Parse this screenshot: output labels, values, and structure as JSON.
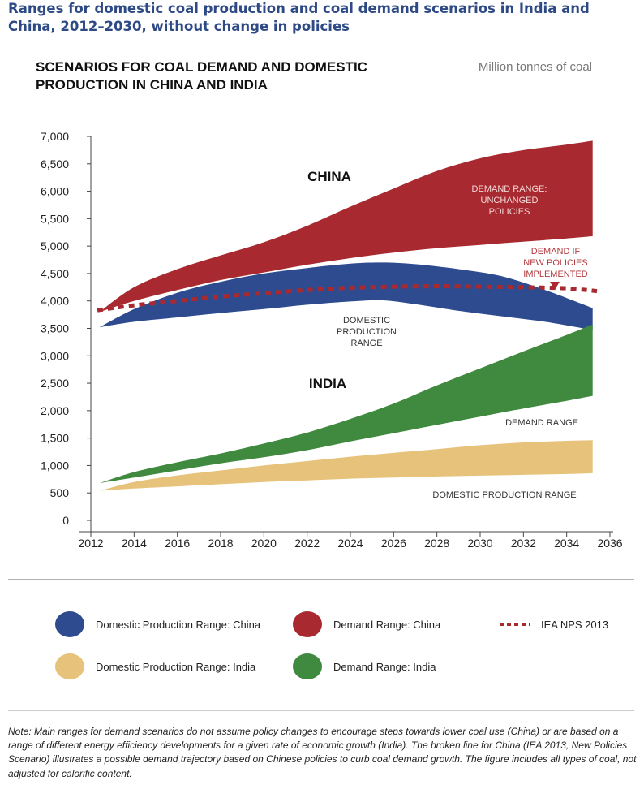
{
  "figure_title": "Ranges for domestic coal production and coal demand scenarios in India and China, 2012–2030, without change in policies",
  "note": "Note: Main ranges for demand scenarios do not assume policy changes to encourage steps towards lower coal use (China) or are based on a range of different energy efficiency developments for a given rate of economic growth (India). The broken line for China (IEA 2013, New Policies Scenario) illustrates a possible demand trajectory based on Chinese policies to curb coal demand growth. The figure includes all types of coal, not adjusted for calorific content.",
  "colors": {
    "title": "#2e4a86",
    "china_production": "#2d4b8e",
    "china_demand": "#a82a30",
    "india_production": "#e6c27a",
    "india_demand": "#3f8a3e",
    "iea": "#a82a30",
    "red_text": "#b23a3f"
  },
  "chart_data": {
    "type": "area",
    "title": "SCENARIOS FOR COAL DEMAND AND DOMESTIC PRODUCTION IN CHINA AND INDIA",
    "unit": "Million tonnes of coal",
    "xlabel": "",
    "ylabel": "",
    "xlim": [
      2012,
      2036
    ],
    "ylim": [
      0,
      7000
    ],
    "xticks": [
      2012,
      2014,
      2016,
      2018,
      2020,
      2022,
      2024,
      2026,
      2028,
      2030,
      2032,
      2034,
      2036
    ],
    "yticks": [
      0,
      500,
      1000,
      1500,
      2000,
      2500,
      3000,
      3500,
      4000,
      4500,
      5000,
      5500,
      6000,
      6500,
      7000
    ],
    "ytick_labels": [
      "0",
      "500",
      "1,000",
      "1,500",
      "2,000",
      "2,500",
      "3,000",
      "3,500",
      "4,000",
      "4,500",
      "5,000",
      "5,500",
      "6,000",
      "6,500",
      "7,000"
    ],
    "grid": false,
    "legend_position": "bottom",
    "series": [
      {
        "name": "Domestic Production Range: China",
        "key": "china_production",
        "kind": "band",
        "x": [
          2012.4,
          2014,
          2016,
          2018,
          2020,
          2022,
          2024,
          2025.5,
          2027,
          2029,
          2031,
          2033,
          2035.2
        ],
        "upper": [
          3520,
          3850,
          4150,
          4350,
          4500,
          4600,
          4680,
          4700,
          4670,
          4580,
          4450,
          4200,
          3870
        ],
        "lower": [
          3520,
          3620,
          3700,
          3780,
          3850,
          3930,
          3990,
          4010,
          3940,
          3820,
          3720,
          3620,
          3470
        ]
      },
      {
        "name": "Demand Range: China",
        "key": "china_demand",
        "kind": "band",
        "x": [
          2012.4,
          2014,
          2016,
          2018,
          2020,
          2022,
          2024,
          2026,
          2028,
          2030,
          2032,
          2034,
          2035.2
        ],
        "upper": [
          3800,
          4250,
          4580,
          4830,
          5070,
          5370,
          5720,
          6050,
          6370,
          6600,
          6750,
          6850,
          6920
        ],
        "lower": [
          3800,
          4000,
          4200,
          4380,
          4520,
          4660,
          4780,
          4880,
          4960,
          5020,
          5080,
          5140,
          5180
        ]
      },
      {
        "name": "Domestic Production Range: India",
        "key": "india_production",
        "kind": "band",
        "x": [
          2012.4,
          2014,
          2016,
          2018,
          2020,
          2022,
          2024,
          2026,
          2028,
          2030,
          2032,
          2034,
          2035.2
        ],
        "upper": [
          540,
          700,
          820,
          910,
          1000,
          1080,
          1160,
          1230,
          1300,
          1370,
          1420,
          1450,
          1460
        ],
        "lower": [
          540,
          580,
          620,
          660,
          700,
          730,
          760,
          780,
          800,
          815,
          830,
          845,
          860
        ]
      },
      {
        "name": "Demand Range: India",
        "key": "india_demand",
        "kind": "band",
        "x": [
          2012.4,
          2014,
          2016,
          2018,
          2020,
          2022,
          2024,
          2026,
          2028,
          2030,
          2032,
          2034,
          2035.2
        ],
        "upper": [
          680,
          880,
          1060,
          1220,
          1400,
          1600,
          1850,
          2130,
          2460,
          2770,
          3080,
          3380,
          3570
        ],
        "lower": [
          680,
          780,
          910,
          1040,
          1150,
          1280,
          1440,
          1590,
          1740,
          1890,
          2040,
          2180,
          2270
        ]
      },
      {
        "name": "IEA NPS 2013",
        "key": "iea",
        "kind": "dashed-line",
        "x": [
          2012.3,
          2014,
          2016,
          2018,
          2020,
          2022,
          2024,
          2026,
          2028,
          2030,
          2032,
          2034,
          2035.4
        ],
        "values": [
          3830,
          3920,
          4000,
          4080,
          4140,
          4200,
          4240,
          4260,
          4270,
          4260,
          4250,
          4230,
          4180
        ]
      }
    ],
    "annotations": {
      "china": "CHINA",
      "india": "INDIA",
      "china_demand_1": "DEMAND RANGE:",
      "china_demand_2": "UNCHANGED",
      "china_demand_3": "POLICIES",
      "china_production_1": "DOMESTIC",
      "china_production_2": "PRODUCTION",
      "china_production_3": "RANGE",
      "new_policies_1": "DEMAND IF",
      "new_policies_2": "NEW POLICIES",
      "new_policies_3": "IMPLEMENTED",
      "india_demand": "DEMAND RANGE",
      "india_production": "DOMESTIC PRODUCTION RANGE"
    }
  },
  "legend": [
    {
      "label": "Domestic Production Range: China",
      "key": "china_production",
      "marker": "circle"
    },
    {
      "label": "Demand Range: China",
      "key": "china_demand",
      "marker": "circle"
    },
    {
      "label": "IEA NPS 2013",
      "key": "iea",
      "marker": "dashes"
    },
    {
      "label": "Domestic Production Range: India",
      "key": "india_production",
      "marker": "circle"
    },
    {
      "label": "Demand Range: India",
      "key": "india_demand",
      "marker": "circle"
    }
  ]
}
